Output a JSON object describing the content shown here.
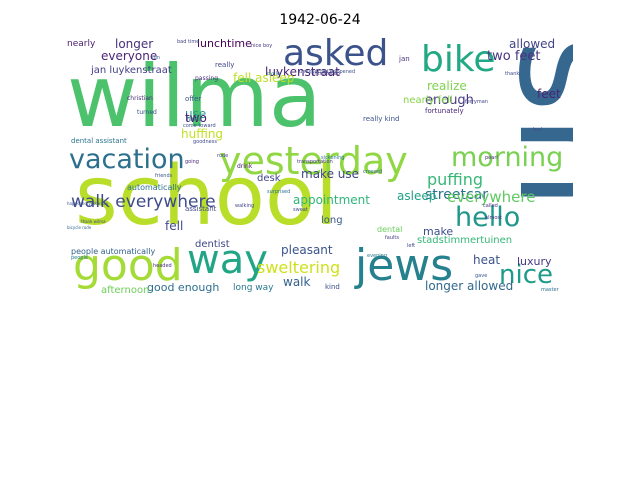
{
  "title": "1942-06-24",
  "words": [
    {
      "text": "us",
      "color": "#35678f",
      "vertical": true
    },
    {
      "text": "school",
      "color": "#b8de29"
    },
    {
      "text": "wilma",
      "color": "#4cc26c"
    },
    {
      "text": "yesterday",
      "color": "#90d743"
    },
    {
      "text": "jews",
      "color": "#26818e"
    },
    {
      "text": "good",
      "color": "#a5db36"
    },
    {
      "text": "way",
      "color": "#21a585"
    },
    {
      "text": "asked",
      "color": "#3b528b"
    },
    {
      "text": "bike",
      "color": "#22a884"
    },
    {
      "text": "vacation",
      "color": "#2d708e"
    },
    {
      "text": "morning",
      "color": "#7ad151"
    },
    {
      "text": "hello",
      "color": "#1f988b"
    },
    {
      "text": "nice",
      "color": "#1e9b8a"
    },
    {
      "text": "walk everywhere",
      "color": "#3e4a89"
    },
    {
      "text": "sweltering",
      "color": "#d0e11c"
    },
    {
      "text": "puffing",
      "color": "#37b878"
    },
    {
      "text": "streetcar",
      "color": "#2c728e"
    },
    {
      "text": "everywhere",
      "color": "#5ec962"
    },
    {
      "text": "make use",
      "color": "#3f4788"
    },
    {
      "text": "realize",
      "color": "#7fd34e"
    },
    {
      "text": "enough",
      "color": "#443a83"
    },
    {
      "text": "two feet",
      "color": "#46337f"
    },
    {
      "text": "feet",
      "color": "#482576"
    },
    {
      "text": "allowed",
      "color": "#414487"
    },
    {
      "text": "longer",
      "color": "#472f7d"
    },
    {
      "text": "everyone",
      "color": "#482475"
    },
    {
      "text": "lunchtime",
      "color": "#440154"
    },
    {
      "text": "jan luykenstraat",
      "color": "#433e85"
    },
    {
      "text": "nearly",
      "color": "#481b6d"
    },
    {
      "text": "luxury",
      "color": "#453781"
    },
    {
      "text": "heat",
      "color": "#3b528b"
    },
    {
      "text": "longer allowed",
      "color": "#31688e"
    },
    {
      "text": "pleasant",
      "color": "#3a548c"
    },
    {
      "text": "good enough",
      "color": "#2e6e8e"
    },
    {
      "text": "walk",
      "color": "#355f8d"
    },
    {
      "text": "make",
      "color": "#3d4e8a"
    },
    {
      "text": "asleep",
      "color": "#1fa187"
    },
    {
      "text": "desk",
      "color": "#404588"
    },
    {
      "text": "use",
      "color": "#1f9e89"
    },
    {
      "text": "two",
      "color": "#481f70"
    },
    {
      "text": "fell",
      "color": "#3e4989"
    },
    {
      "text": "dentist",
      "color": "#3f4889"
    },
    {
      "text": "long",
      "color": "#38588c"
    },
    {
      "text": "afternoon",
      "color": "#6ece58"
    },
    {
      "text": "huffing",
      "color": "#c2df23"
    },
    {
      "text": "appointment",
      "color": "#31b57b"
    },
    {
      "text": "luykenstraat",
      "color": "#482173"
    },
    {
      "text": "fell asleep",
      "color": "#bddf26"
    },
    {
      "text": "nearly fell",
      "color": "#86d549"
    },
    {
      "text": "stadstimmertuinen",
      "color": "#35b779"
    },
    {
      "text": "long way",
      "color": "#2a788e"
    },
    {
      "text": "people automatically",
      "color": "#33628d"
    },
    {
      "text": "automatically",
      "color": "#2d718e"
    },
    {
      "text": "really",
      "color": "#414487"
    },
    {
      "text": "really kind",
      "color": "#3b528b"
    },
    {
      "text": "jan",
      "color": "#46327e"
    },
    {
      "text": "fortunately",
      "color": "#482878"
    },
    {
      "text": "dental assistant",
      "color": "#2c738e"
    },
    {
      "text": "assistant",
      "color": "#3f4889"
    },
    {
      "text": "kind",
      "color": "#3d4d8a"
    },
    {
      "text": "dental",
      "color": "#6ccd5a"
    },
    {
      "text": "passing",
      "color": "#482979"
    },
    {
      "text": "christian",
      "color": "#472d7b"
    },
    {
      "text": "turned",
      "color": "#3c508b"
    },
    {
      "text": "offer",
      "color": "#3b528b"
    },
    {
      "text": "bad time",
      "color": "#404688"
    },
    {
      "text": "nice boy",
      "color": "#453882"
    },
    {
      "text": "ferryman",
      "color": "#414487"
    },
    {
      "text": "thank",
      "color": "#3f4788"
    },
    {
      "text": "called",
      "color": "#453581"
    },
    {
      "text": "almost",
      "color": "#46307e"
    },
    {
      "text": "faults",
      "color": "#433d84"
    },
    {
      "text": "left",
      "color": "#3e4989"
    },
    {
      "text": "cycle",
      "color": "#2e6f8e"
    },
    {
      "text": "evening",
      "color": "#2a788e"
    },
    {
      "text": "drink",
      "color": "#481668"
    },
    {
      "text": "goodness",
      "color": "#3e4a89"
    },
    {
      "text": "surprised",
      "color": "#2d708e"
    },
    {
      "text": "unexpected happened",
      "color": "#3b528b"
    },
    {
      "text": "transportation",
      "color": "#453882"
    },
    {
      "text": "sweat",
      "color": "#3f4788"
    },
    {
      "text": "happened yesterday",
      "color": "#3a538b"
    },
    {
      "text": "bicycle rode",
      "color": "#33638d"
    },
    {
      "text": "thank wilma",
      "color": "#404688"
    },
    {
      "text": "people",
      "color": "#287c8e"
    },
    {
      "text": "headed",
      "color": "#46307e"
    },
    {
      "text": "walking",
      "color": "#3f4788"
    },
    {
      "text": "gave",
      "color": "#375a8c"
    },
    {
      "text": "master",
      "color": "#2c718e"
    },
    {
      "text": "pearl",
      "color": "#472c7a"
    },
    {
      "text": "going",
      "color": "#482677"
    },
    {
      "text": "father",
      "color": "#31678e"
    },
    {
      "text": "come toward",
      "color": "#3d4d8a"
    },
    {
      "text": "bad",
      "color": "#3b528b"
    },
    {
      "text": "sickening",
      "color": "#2b758e"
    },
    {
      "text": "friends",
      "color": "#3a548c"
    },
    {
      "text": "rode",
      "color": "#404387"
    },
    {
      "text": "crossed",
      "color": "#31678e"
    },
    {
      "text": "introduced",
      "color": "#453781"
    },
    {
      "text": "sun",
      "color": "#37598c"
    }
  ]
}
